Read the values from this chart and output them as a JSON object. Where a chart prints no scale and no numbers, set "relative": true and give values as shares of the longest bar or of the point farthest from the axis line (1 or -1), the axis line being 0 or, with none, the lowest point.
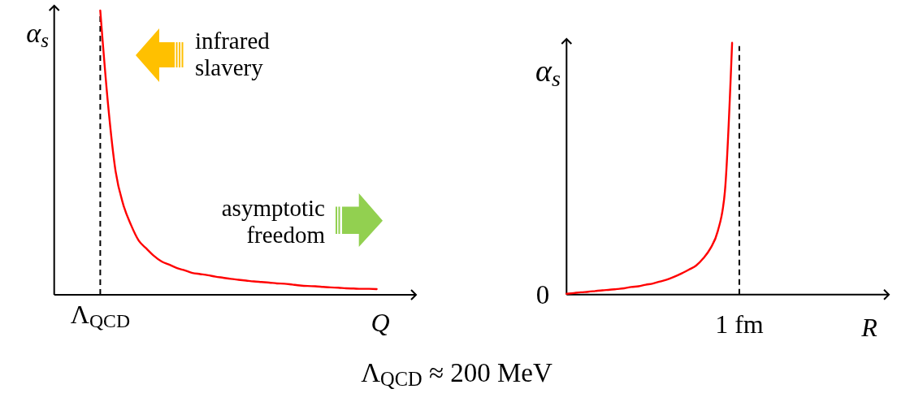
{
  "chart_data": [
    {
      "type": "line",
      "relative": true,
      "ylabel": "α$_{s}$",
      "xlabel": "Q",
      "categories": [
        null,
        null,
        null,
        null,
        null,
        null,
        null,
        null,
        null,
        null,
        null,
        null,
        null,
        null,
        null,
        null,
        null,
        null,
        null,
        null,
        null,
        null,
        null,
        null,
        null,
        null,
        null,
        null,
        null,
        null,
        null,
        null,
        null,
        null,
        null,
        null,
        null,
        null,
        null,
        null,
        null,
        null,
        null,
        null,
        null,
        null,
        null
      ],
      "series": [
        {
          "color": "#ff0000",
          "values": [
            null,
            null,
            null,
            null,
            null,
            null,
            1,
            0.674,
            0.434,
            0.317,
            0.246,
            0.191,
            0.163,
            0.137,
            0.117,
            0.106,
            0.094,
            0.086,
            0.077,
            0.073,
            0.069,
            0.064,
            0.06,
            0.056,
            0.053,
            0.05,
            0.047,
            0.045,
            0.043,
            0.04,
            0.039,
            0.036,
            0.033,
            0.031,
            0.03,
            0.028,
            0.026,
            0.025,
            0.023,
            0.022,
            0.021,
            0.021,
            0.02,
            null,
            null,
            null,
            null
          ]
        }
      ],
      "annotations": [
        "infrared slavery",
        "asymptotic freedom",
        "Λ$_{QCD}$",
        "Λ$_{QCD}$ ≈ 200 MeV"
      ]
    },
    {
      "type": "line",
      "relative": true,
      "ylabel": "α$_{s}$",
      "xlabel": "R",
      "categories": [
        null,
        null,
        null,
        null,
        null,
        null,
        null,
        null,
        null,
        null,
        null,
        null,
        null,
        null,
        null,
        null,
        null,
        null,
        null,
        null,
        null,
        null,
        null,
        null,
        null,
        null,
        null,
        null,
        null,
        null,
        null,
        null,
        null,
        null,
        null,
        null,
        null,
        null,
        null,
        null,
        null,
        null,
        null,
        null,
        null
      ],
      "series": [
        {
          "color": "#ff0000",
          "values": [
            0.003,
            0.006,
            0.009,
            0.011,
            0.014,
            0.017,
            0.019,
            0.022,
            0.025,
            0.03,
            0.033,
            0.039,
            0.044,
            0.052,
            0.06,
            0.071,
            0.084,
            0.099,
            0.115,
            0.144,
            0.184,
            0.251,
            0.41,
            1,
            null,
            null,
            null,
            null,
            null,
            null,
            null,
            null,
            null,
            null,
            null,
            null,
            null,
            null,
            null,
            null,
            null,
            null,
            null,
            null,
            null
          ]
        }
      ],
      "annotations": [
        "0",
        "1 fm"
      ]
    }
  ]
}
